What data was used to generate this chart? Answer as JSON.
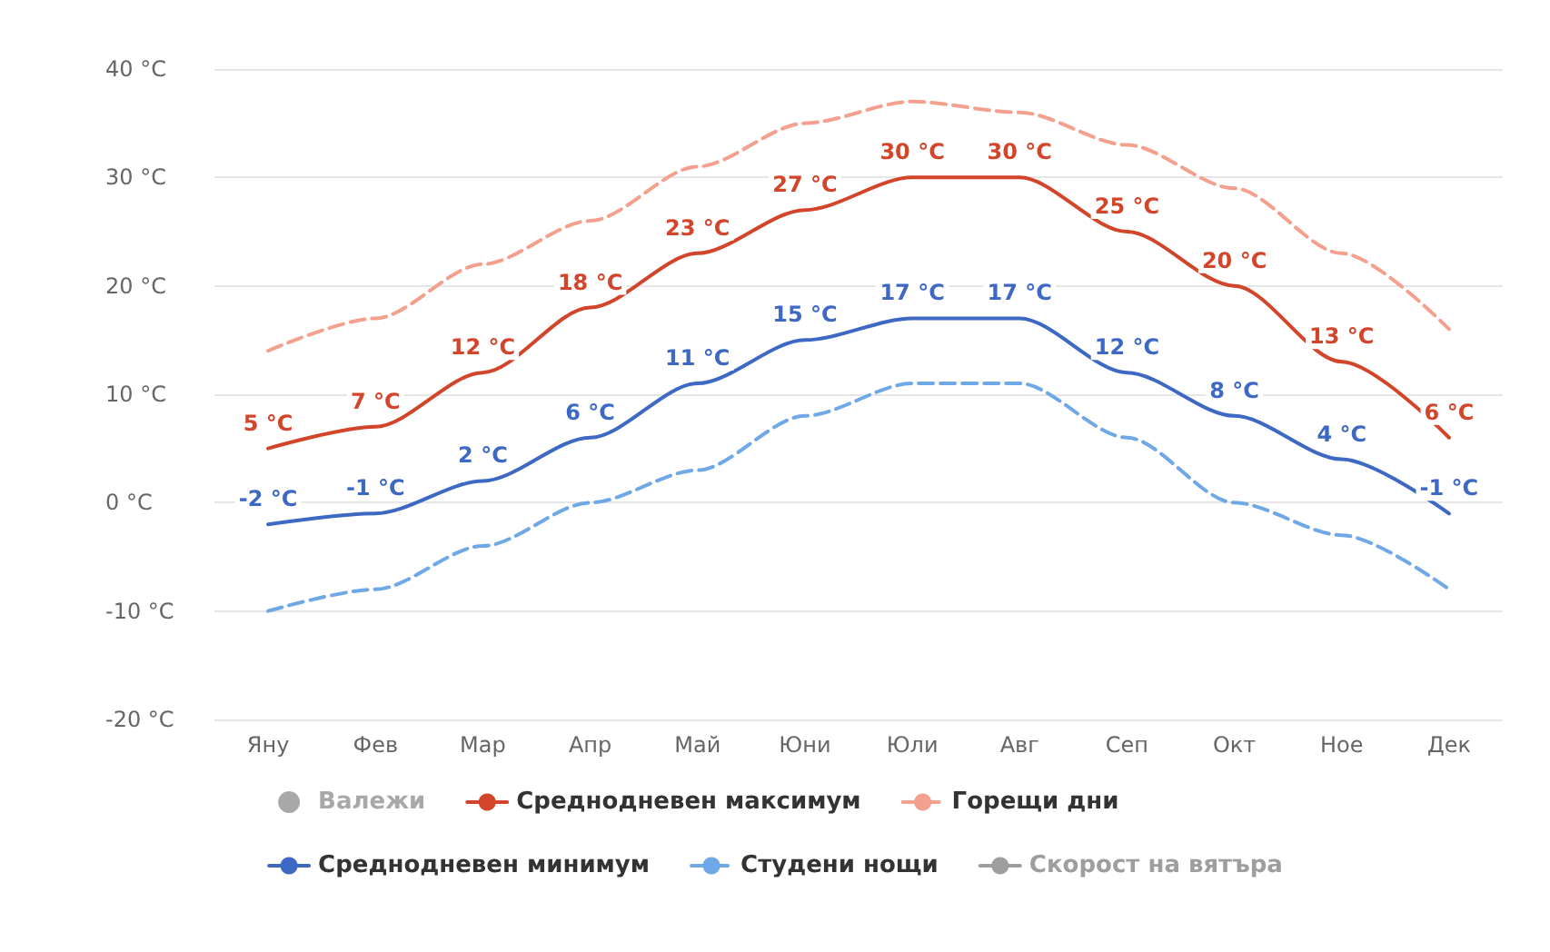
{
  "chart_data": {
    "type": "line",
    "categories": [
      "Яну",
      "Фев",
      "Мар",
      "Апр",
      "Май",
      "Юни",
      "Юли",
      "Авг",
      "Сеп",
      "Окт",
      "Ное",
      "Дек"
    ],
    "ylim": [
      -20,
      40
    ],
    "yticks": [
      {
        "value": -20,
        "label": "-20 °C"
      },
      {
        "value": -10,
        "label": "-10 °C"
      },
      {
        "value": 0,
        "label": "0 °C"
      },
      {
        "value": 10,
        "label": "10 °C"
      },
      {
        "value": 20,
        "label": "20 °C"
      },
      {
        "value": 30,
        "label": "30 °C"
      },
      {
        "value": 40,
        "label": "40 °C"
      }
    ],
    "grid": "y",
    "legend": "bottom",
    "marker": "none",
    "series": [
      {
        "name": "Валежи",
        "type": "bar",
        "color": "#a8a8a8",
        "values": [
          null,
          null,
          null,
          null,
          null,
          null,
          null,
          null,
          null,
          null,
          null,
          null
        ]
      },
      {
        "name": "Среднодневен максимум",
        "color": "#d2452a",
        "line_style": "solid",
        "values": [
          5,
          7,
          12,
          18,
          23,
          27,
          30,
          30,
          25,
          20,
          13,
          6
        ],
        "value_labels": [
          "5 °C",
          "7 °C",
          "12 °C",
          "18 °C",
          "23 °C",
          "27 °C",
          "30 °C",
          "30 °C",
          "25 °C",
          "20 °C",
          "13 °C",
          "6 °C"
        ]
      },
      {
        "name": "Горещи дни",
        "color": "#f4a08e",
        "line_style": "dashed",
        "values": [
          14,
          17,
          22,
          26,
          31,
          35,
          37,
          36,
          33,
          29,
          23,
          16
        ]
      },
      {
        "name": "Среднодневен минимум",
        "color": "#3d68c4",
        "line_style": "solid",
        "values": [
          -2,
          -1,
          2,
          6,
          11,
          15,
          17,
          17,
          12,
          8,
          4,
          -1
        ],
        "value_labels": [
          "-2 °C",
          "-1 °C",
          "2 °C",
          "6 °C",
          "11 °C",
          "15 °C",
          "17 °C",
          "17 °C",
          "12 °C",
          "8 °C",
          "4 °C",
          "-1 °C"
        ]
      },
      {
        "name": "Студени нощи",
        "color": "#6fa8e6",
        "line_style": "dashed",
        "values": [
          -10,
          -8,
          -4,
          0,
          3,
          8,
          11,
          11,
          6,
          0,
          -3,
          -8
        ]
      },
      {
        "name": "Скорост на вятъра",
        "type": "line",
        "color": "#9e9e9e",
        "line_style": "solid",
        "values": [
          null,
          null,
          null,
          null,
          null,
          null,
          null,
          null,
          null,
          null,
          null,
          null
        ]
      }
    ]
  }
}
